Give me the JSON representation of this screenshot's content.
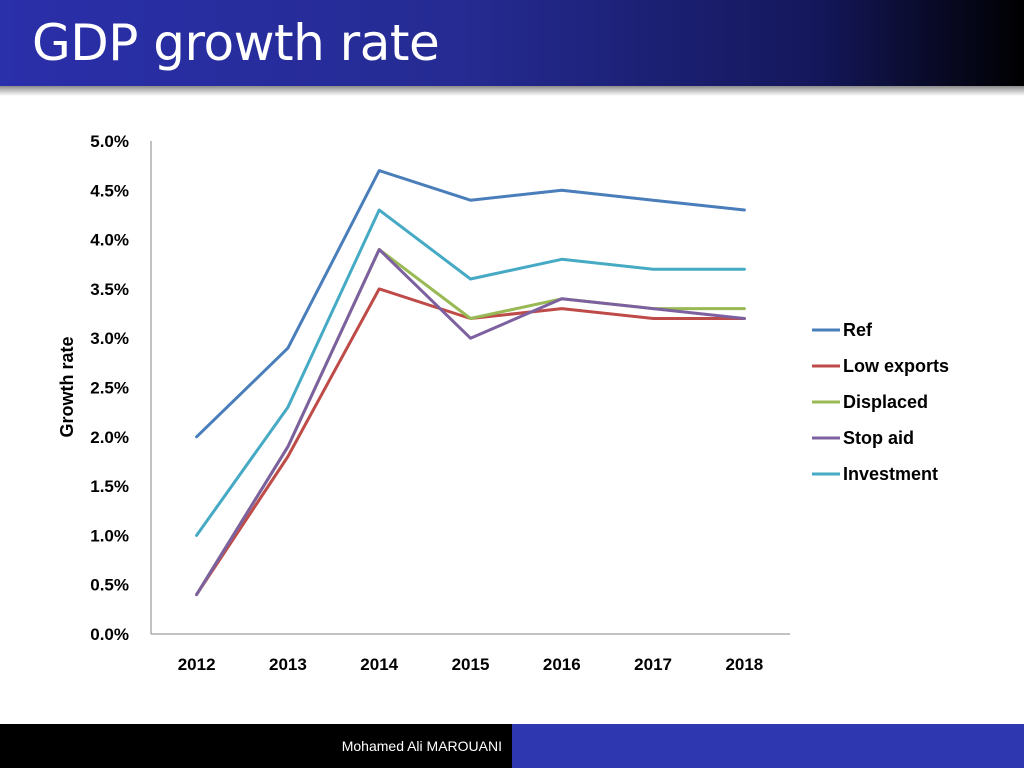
{
  "slide": {
    "title": "GDP growth rate",
    "footer": "Mohamed Ali MAROUANI"
  },
  "colors": {
    "title_bg_start": "#2a2faa",
    "title_bg_end": "#000000",
    "footer_right": "#2e36b0",
    "footer_left": "#000000"
  },
  "chart_data": {
    "type": "line",
    "title": "",
    "xlabel": "",
    "ylabel": "Growth rate",
    "categories": [
      "2012",
      "2013",
      "2014",
      "2015",
      "2016",
      "2017",
      "2018"
    ],
    "ylim": [
      0,
      5.0
    ],
    "yticks": [
      0,
      0.5,
      1.0,
      1.5,
      2.0,
      2.5,
      3.0,
      3.5,
      4.0,
      4.5,
      5.0
    ],
    "ytick_labels": [
      "0.0%",
      "0.5%",
      "1.0%",
      "1.5%",
      "2.0%",
      "2.5%",
      "3.0%",
      "3.5%",
      "4.0%",
      "4.5%",
      "5.0%"
    ],
    "grid": false,
    "legend_position": "right",
    "series": [
      {
        "name": "Ref",
        "color": "#4a7ebb",
        "values": [
          2.0,
          2.9,
          4.7,
          4.4,
          4.5,
          4.4,
          4.3
        ]
      },
      {
        "name": "Low exports",
        "color": "#be4b48",
        "values": [
          0.4,
          1.8,
          3.5,
          3.2,
          3.3,
          3.2,
          3.2
        ]
      },
      {
        "name": "Displaced",
        "color": "#98b954",
        "values": [
          0.4,
          1.9,
          3.9,
          3.2,
          3.4,
          3.3,
          3.3
        ]
      },
      {
        "name": "Stop aid",
        "color": "#7d60a0",
        "values": [
          0.4,
          1.9,
          3.9,
          3.0,
          3.4,
          3.3,
          3.2
        ]
      },
      {
        "name": "Investment",
        "color": "#46aac5",
        "values": [
          1.0,
          2.3,
          4.3,
          3.6,
          3.8,
          3.7,
          3.7
        ]
      }
    ]
  }
}
